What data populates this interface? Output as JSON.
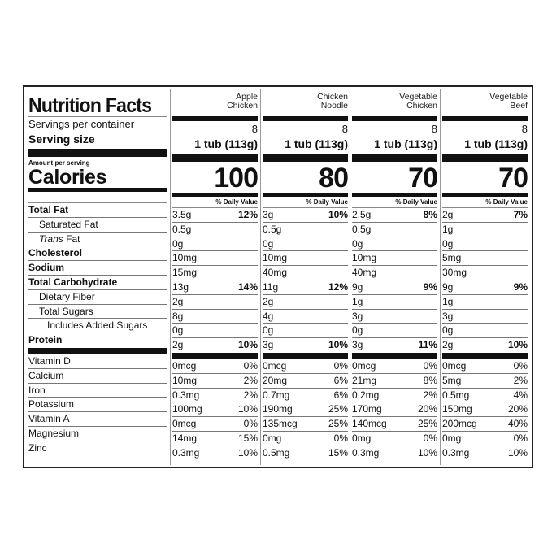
{
  "title": "Nutrition Facts",
  "servings_label": "Servings per container",
  "serving_size_label": "Serving size",
  "amount_per_serving": "Amount per serving",
  "calories_label": "Calories",
  "daily_value_label": "% Daily Value",
  "nutrients": [
    {
      "label": "Total Fat",
      "style": "b"
    },
    {
      "label": "Saturated Fat",
      "style": "i1"
    },
    {
      "label": "Trans Fat",
      "style": "i1"
    },
    {
      "label": "Cholesterol",
      "style": "b"
    },
    {
      "label": "Sodium",
      "style": "b"
    },
    {
      "label": "Total Carbohydrate",
      "style": "b"
    },
    {
      "label": "Dietary Fiber",
      "style": "i1"
    },
    {
      "label": "Total Sugars",
      "style": "i1"
    },
    {
      "label": "Includes Added Sugars",
      "style": "i2"
    },
    {
      "label": "Protein",
      "style": "b"
    }
  ],
  "vitamins": [
    "Vitamin D",
    "Calcium",
    "Iron",
    "Potassium",
    "Vitamin A",
    "Magnesium",
    "Zinc"
  ],
  "products": [
    {
      "name": "Apple Chicken",
      "servings": "8",
      "serving_size": "1 tub (113g)",
      "calories": "100",
      "nutrients": [
        [
          "3.5g",
          "12%"
        ],
        [
          "0.5g",
          ""
        ],
        [
          "0g",
          ""
        ],
        [
          "10mg",
          ""
        ],
        [
          "15mg",
          ""
        ],
        [
          "13g",
          "14%"
        ],
        [
          "2g",
          ""
        ],
        [
          "8g",
          ""
        ],
        [
          "0g",
          ""
        ],
        [
          "2g",
          "10%"
        ]
      ],
      "vitamins": [
        [
          "0mcg",
          "0%"
        ],
        [
          "10mg",
          "2%"
        ],
        [
          "0.3mg",
          "2%"
        ],
        [
          "100mg",
          "10%"
        ],
        [
          "0mcg",
          "0%"
        ],
        [
          "14mg",
          "15%"
        ],
        [
          "0.3mg",
          "10%"
        ]
      ]
    },
    {
      "name": "Chicken Noodle",
      "servings": "8",
      "serving_size": "1 tub (113g)",
      "calories": "80",
      "nutrients": [
        [
          "3g",
          "10%"
        ],
        [
          "0.5g",
          ""
        ],
        [
          "0g",
          ""
        ],
        [
          "10mg",
          ""
        ],
        [
          "40mg",
          ""
        ],
        [
          "11g",
          "12%"
        ],
        [
          "2g",
          ""
        ],
        [
          "4g",
          ""
        ],
        [
          "0g",
          ""
        ],
        [
          "3g",
          "10%"
        ]
      ],
      "vitamins": [
        [
          "0mcg",
          "0%"
        ],
        [
          "20mg",
          "6%"
        ],
        [
          "0.7mg",
          "6%"
        ],
        [
          "190mg",
          "25%"
        ],
        [
          "135mcg",
          "25%"
        ],
        [
          "0mg",
          "0%"
        ],
        [
          "0.5mg",
          "15%"
        ]
      ]
    },
    {
      "name": "Vegetable Chicken",
      "servings": "8",
      "serving_size": "1 tub (113g)",
      "calories": "70",
      "nutrients": [
        [
          "2.5g",
          "8%"
        ],
        [
          "0.5g",
          ""
        ],
        [
          "0g",
          ""
        ],
        [
          "10mg",
          ""
        ],
        [
          "40mg",
          ""
        ],
        [
          "9g",
          "9%"
        ],
        [
          "1g",
          ""
        ],
        [
          "3g",
          ""
        ],
        [
          "0g",
          ""
        ],
        [
          "3g",
          "11%"
        ]
      ],
      "vitamins": [
        [
          "0mcg",
          "0%"
        ],
        [
          "21mg",
          "8%"
        ],
        [
          "0.2mg",
          "2%"
        ],
        [
          "170mg",
          "20%"
        ],
        [
          "140mcg",
          "25%"
        ],
        [
          "0mg",
          "0%"
        ],
        [
          "0.3mg",
          "10%"
        ]
      ]
    },
    {
      "name": "Vegetable Beef",
      "servings": "8",
      "serving_size": "1 tub (113g)",
      "calories": "70",
      "nutrients": [
        [
          "2g",
          "7%"
        ],
        [
          "1g",
          ""
        ],
        [
          "0g",
          ""
        ],
        [
          "5mg",
          ""
        ],
        [
          "30mg",
          ""
        ],
        [
          "9g",
          "9%"
        ],
        [
          "1g",
          ""
        ],
        [
          "3g",
          ""
        ],
        [
          "0g",
          ""
        ],
        [
          "2g",
          "10%"
        ]
      ],
      "vitamins": [
        [
          "0mcg",
          "0%"
        ],
        [
          "5mg",
          "2%"
        ],
        [
          "0.5mg",
          "4%"
        ],
        [
          "150mg",
          "20%"
        ],
        [
          "200mcg",
          "40%"
        ],
        [
          "0mg",
          "0%"
        ],
        [
          "0.3mg",
          "10%"
        ]
      ]
    }
  ]
}
